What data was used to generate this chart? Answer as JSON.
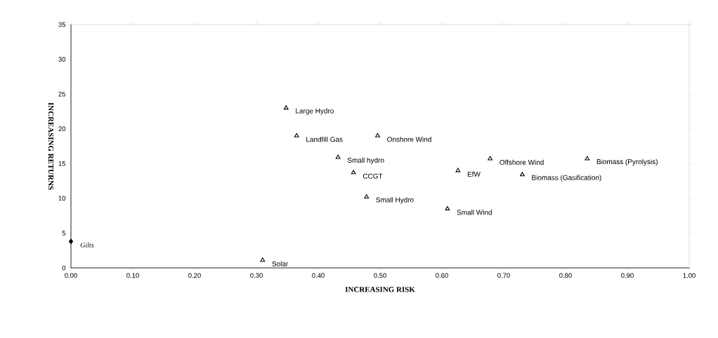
{
  "chart_data": {
    "type": "scatter",
    "xlabel": "INCREASING RISK",
    "ylabel": "INCREASING RETURNS",
    "xlim": [
      0,
      1
    ],
    "ylim": [
      0,
      35
    ],
    "xticks": [
      {
        "value": 0,
        "label": "0.00"
      },
      {
        "value": 0.1,
        "label": "0.10"
      },
      {
        "value": 0.2,
        "label": "0.20"
      },
      {
        "value": 0.3,
        "label": "0.30"
      },
      {
        "value": 0.4,
        "label": "0.40"
      },
      {
        "value": 0.5,
        "label": "0.50"
      },
      {
        "value": 0.6,
        "label": "0.60"
      },
      {
        "value": 0.7,
        "label": "0.70"
      },
      {
        "value": 0.8,
        "label": "0.80"
      },
      {
        "value": 0.9,
        "label": "0.90"
      },
      {
        "value": 1,
        "label": "1.00"
      }
    ],
    "yticks": [
      0,
      5,
      10,
      15,
      20,
      25,
      30,
      35
    ],
    "grid": false,
    "marker": "triangle",
    "series": [
      {
        "name": "Gilts",
        "color": "#000000",
        "marker": "diamond",
        "x": [
          0.0
        ],
        "values": [
          3.8
        ]
      },
      {
        "name": "Solar",
        "color": "#000000",
        "x": [
          0.31
        ],
        "values": [
          1.1
        ]
      },
      {
        "name": "Landfill Gas",
        "color": "#000000",
        "x": [
          0.365
        ],
        "values": [
          19.0
        ]
      },
      {
        "name": "Large Hydro",
        "color": "#000000",
        "x": [
          0.348
        ],
        "values": [
          23.0
        ]
      },
      {
        "name": "Small hydro",
        "color": "#000000",
        "x": [
          0.432
        ],
        "values": [
          15.9
        ]
      },
      {
        "name": "CCGT",
        "color": "#000000",
        "x": [
          0.457
        ],
        "values": [
          13.7
        ]
      },
      {
        "name": "Small Hydro",
        "color": "#000000",
        "x": [
          0.478
        ],
        "values": [
          10.2
        ]
      },
      {
        "name": "Onshore Wind",
        "color": "#000000",
        "x": [
          0.496
        ],
        "values": [
          19.0
        ]
      },
      {
        "name": "Small Wind",
        "color": "#000000",
        "x": [
          0.609
        ],
        "values": [
          8.5
        ]
      },
      {
        "name": "EfW",
        "color": "#000000",
        "x": [
          0.626
        ],
        "values": [
          14.0
        ]
      },
      {
        "name": "Offshore Wind",
        "color": "#000000",
        "x": [
          0.678
        ],
        "values": [
          15.7
        ]
      },
      {
        "name": "Biomass (Gasification)",
        "color": "#000000",
        "x": [
          0.73
        ],
        "values": [
          13.4
        ]
      },
      {
        "name": "Biomass (Pyrolysis)",
        "color": "#000000",
        "x": [
          0.835
        ],
        "values": [
          15.7
        ]
      }
    ]
  }
}
